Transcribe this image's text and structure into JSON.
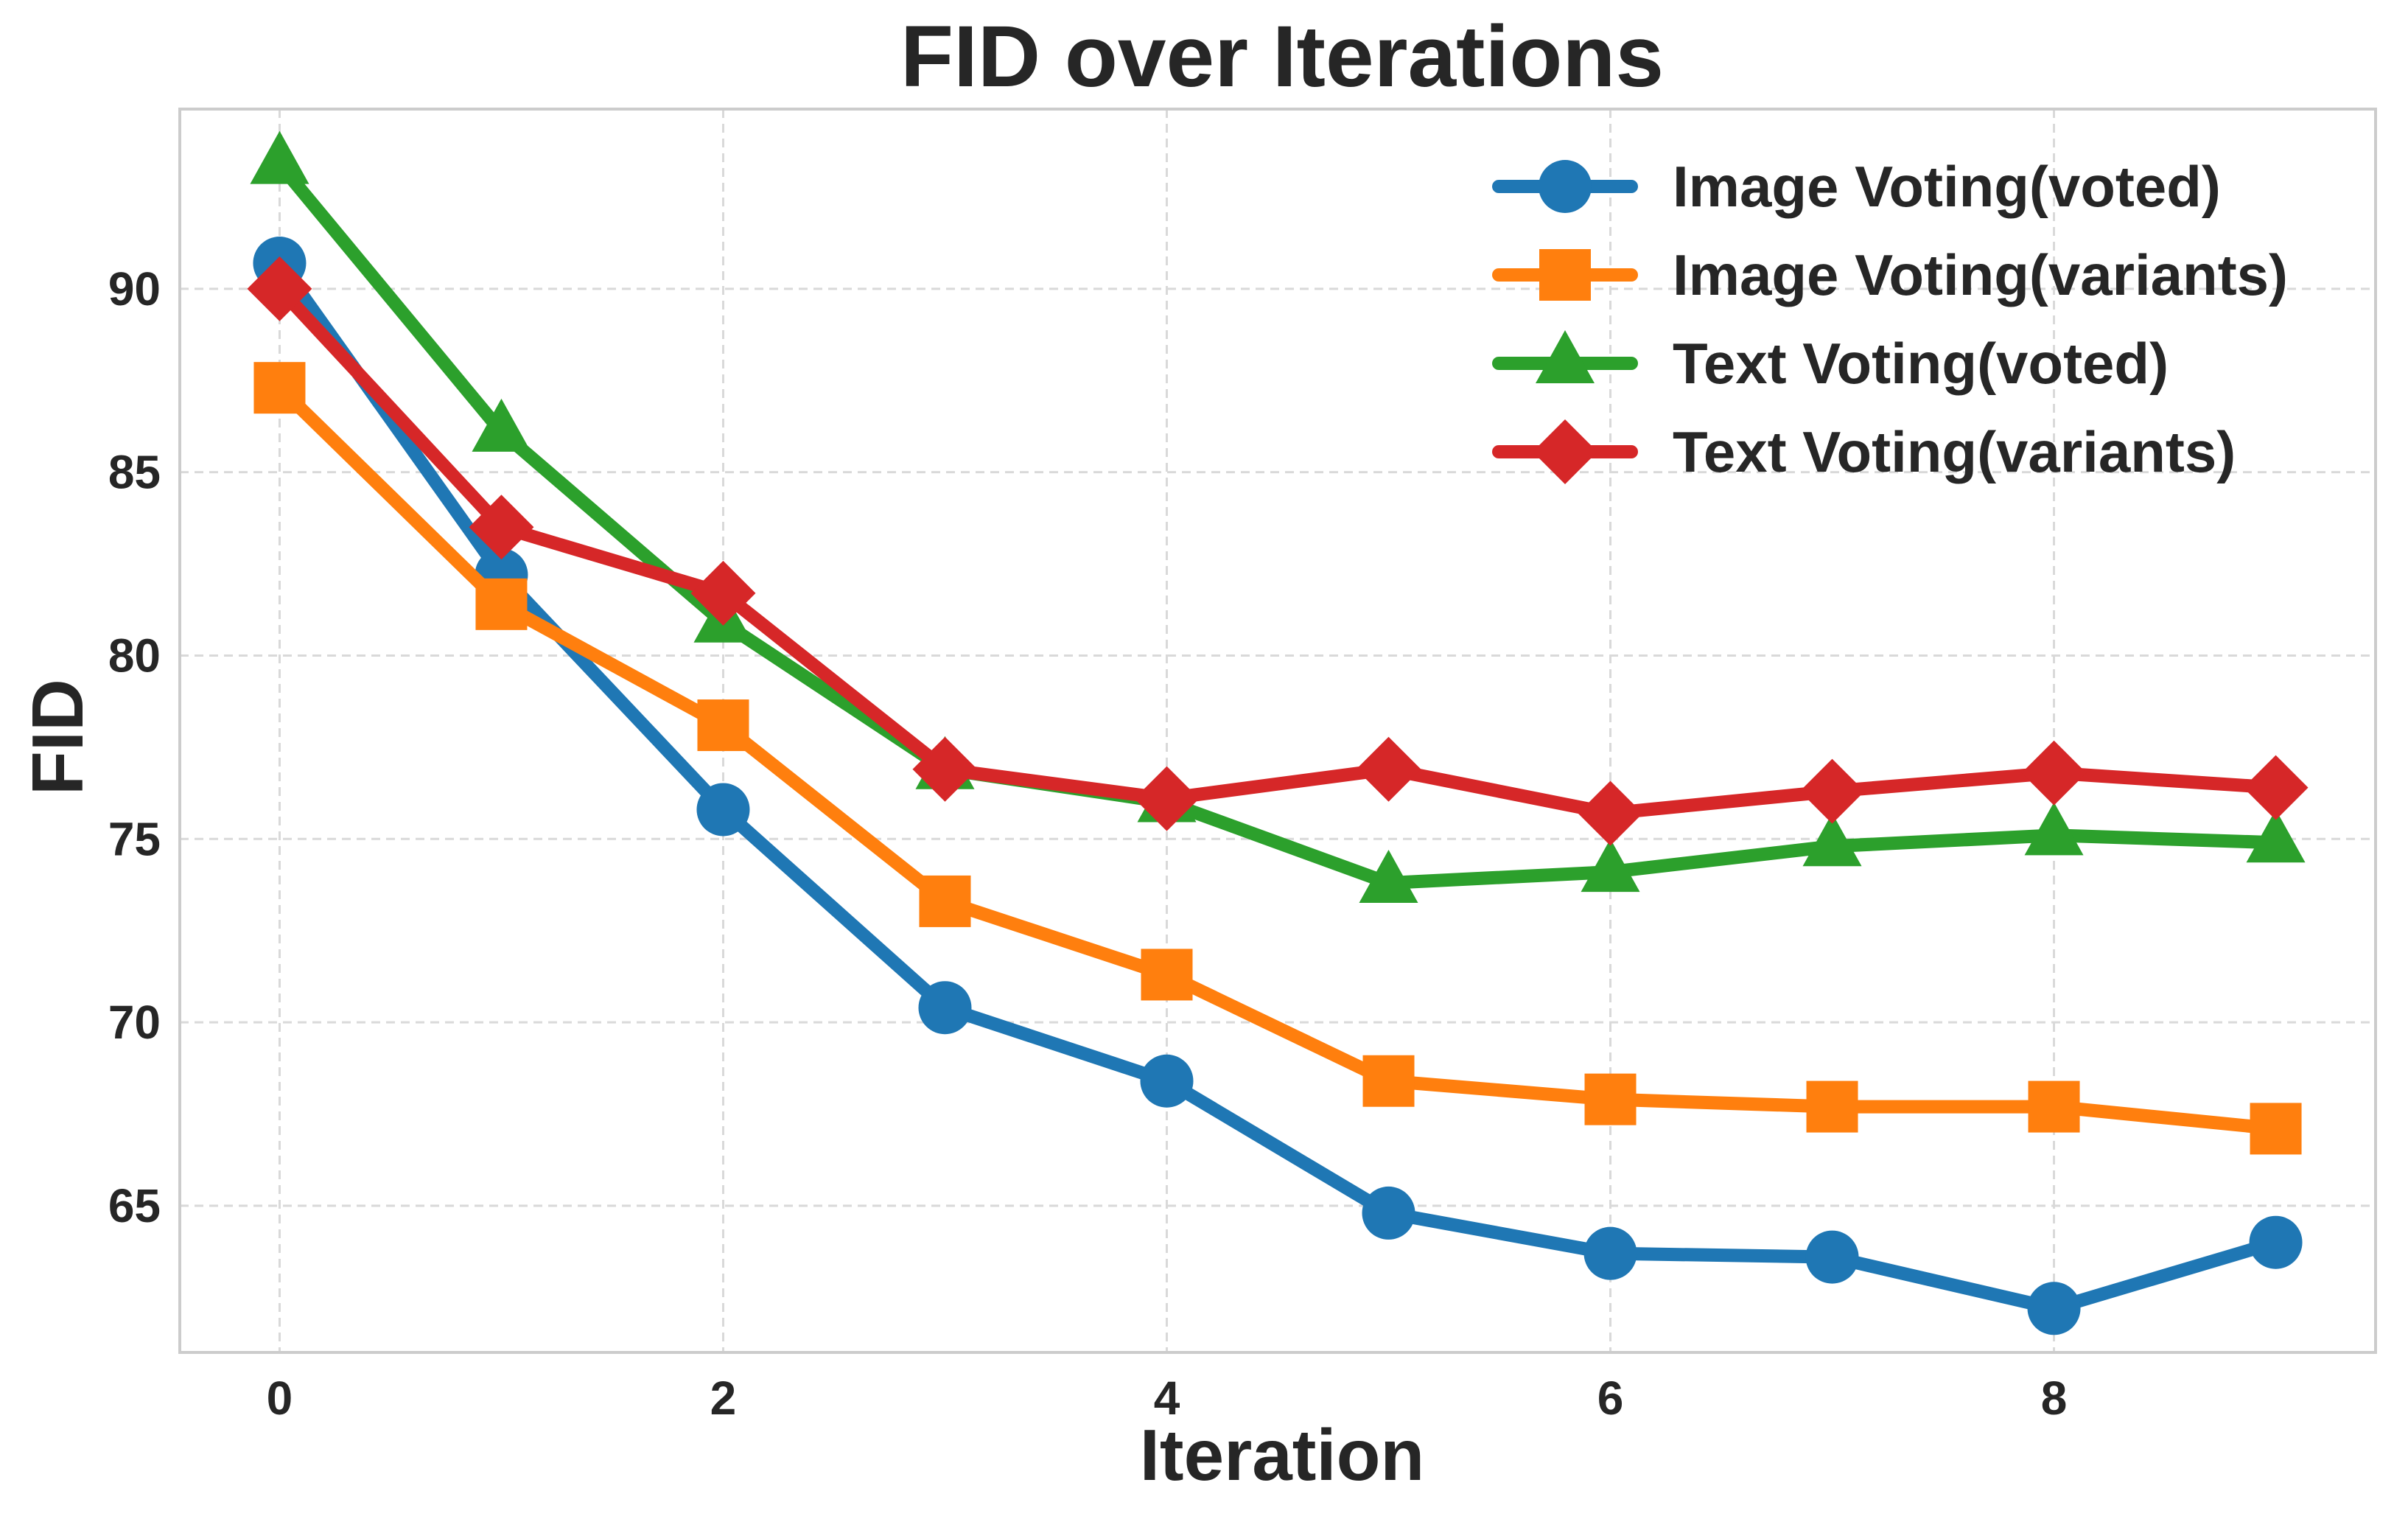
{
  "chart_data": {
    "type": "line",
    "title": "FID over Iterations",
    "xlabel": "Iteration",
    "ylabel": "FID",
    "x": [
      0,
      1,
      2,
      3,
      4,
      5,
      6,
      7,
      8,
      9
    ],
    "xlim": [
      -0.45,
      9.45
    ],
    "ylim": [
      61.0,
      94.9
    ],
    "xticks": [
      0,
      2,
      4,
      6,
      8
    ],
    "yticks": [
      65,
      70,
      75,
      80,
      85,
      90
    ],
    "grid": true,
    "legend_position": "top-right",
    "series": [
      {
        "name": "Image Voting(voted)",
        "color": "#1f77b4",
        "marker": "circle",
        "values": [
          90.7,
          82.2,
          75.8,
          70.4,
          68.4,
          64.8,
          63.7,
          63.6,
          62.2,
          64.0
        ]
      },
      {
        "name": "Image Voting(variants)",
        "color": "#ff7f0e",
        "marker": "square",
        "values": [
          87.3,
          81.4,
          78.1,
          73.3,
          71.3,
          68.4,
          67.9,
          67.7,
          67.7,
          67.1
        ]
      },
      {
        "name": "Text Voting(voted)",
        "color": "#2ca02c",
        "marker": "triangle",
        "values": [
          93.4,
          86.1,
          80.9,
          76.9,
          76.0,
          73.8,
          74.1,
          74.8,
          75.1,
          74.9
        ]
      },
      {
        "name": "Text Voting(variants)",
        "color": "#d62728",
        "marker": "diamond",
        "values": [
          90.0,
          83.5,
          81.7,
          76.9,
          76.1,
          76.9,
          75.7,
          76.3,
          76.8,
          76.4
        ]
      }
    ]
  }
}
